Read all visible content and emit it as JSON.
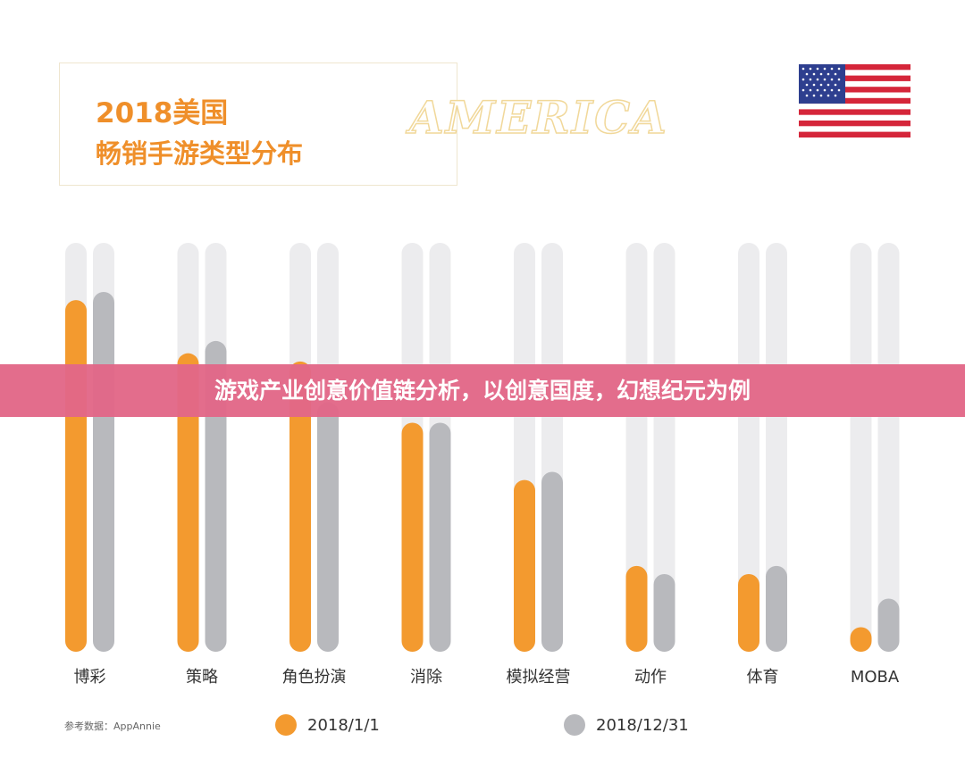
{
  "chart_data": {
    "type": "bar",
    "title": "2018美国",
    "subtitle": "畅销手游类型分布",
    "region_label": "AMERICA",
    "categories": [
      "博彩",
      "策略",
      "角色扮演",
      "消除",
      "模拟经营",
      "动作",
      "体育",
      "MOBA"
    ],
    "series": [
      {
        "name": "2018/1/1",
        "color": "#f39a2f",
        "values": [
          86,
          73,
          71,
          56,
          42,
          21,
          19,
          6
        ]
      },
      {
        "name": "2018/12/31",
        "color": "#b8b9bd",
        "values": [
          88,
          76,
          61,
          56,
          44,
          19,
          21,
          13
        ]
      }
    ],
    "ylim": [
      0,
      100
    ],
    "track_color": "#ececee",
    "legend_position": "bottom",
    "grid": false,
    "source": "参考数据：AppAnnie"
  },
  "banner": {
    "text": "游戏产业创意价值链分析，以创意国度，幻想纪元为例",
    "color": "#e26787"
  },
  "flag": {
    "name": "usa-flag-icon"
  }
}
